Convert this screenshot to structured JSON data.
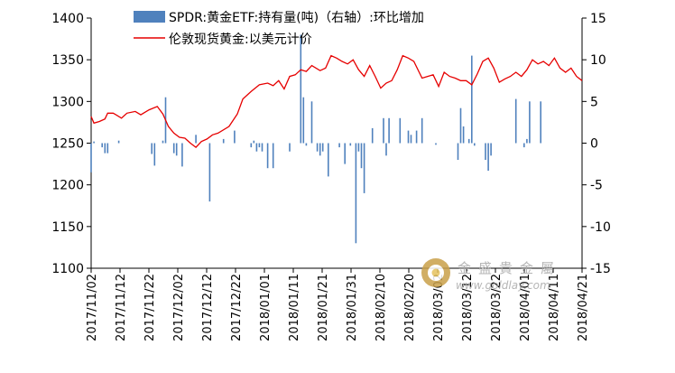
{
  "watermark": {
    "brand": "金盛貴金屬",
    "url": "www.goldlay.com"
  },
  "chart_data": {
    "type": "bar+line",
    "title": "",
    "grid": false,
    "legend": "top-center",
    "axes": {
      "y_left": {
        "min": 1100,
        "max": 1400,
        "ticks": [
          "1100",
          "1150",
          "1200",
          "1250",
          "1300",
          "1350",
          "1400"
        ]
      },
      "y_right": {
        "min": -15,
        "max": 15,
        "ticks": [
          "-15",
          "-10",
          "-5",
          "0",
          "5",
          "10",
          "15"
        ]
      }
    },
    "x_ticks": [
      "2017/11/02",
      "2017/11/12",
      "2017/11/22",
      "2017/12/02",
      "2017/12/12",
      "2017/12/22",
      "2018/01/01",
      "2018/01/11",
      "2018/01/21",
      "2018/01/31",
      "2018/02/10",
      "2018/02/20",
      "2018/03/02",
      "2018/03/12",
      "2018/03/22",
      "2018/04/01",
      "2018/04/11",
      "2018/04/21"
    ],
    "series": [
      {
        "name": "SPDR:黄金ETF:持有量(吨)（右轴）:环比增加",
        "type": "bar",
        "axis": "right",
        "color": "#4f81bd",
        "points": [
          [
            0,
            -3.5
          ],
          [
            1,
            0.2
          ],
          [
            4,
            -0.5
          ],
          [
            5,
            -1.2
          ],
          [
            6,
            -1.2
          ],
          [
            10,
            0.3
          ],
          [
            22,
            -1.3
          ],
          [
            23,
            -2.7
          ],
          [
            26,
            0.3
          ],
          [
            27,
            5.5
          ],
          [
            30,
            -1.2
          ],
          [
            31,
            -1.5
          ],
          [
            33,
            -2.8
          ],
          [
            38,
            1
          ],
          [
            43,
            -7
          ],
          [
            48,
            0.5
          ],
          [
            52,
            1.5
          ],
          [
            58,
            -0.5
          ],
          [
            59,
            0.3
          ],
          [
            60,
            -1
          ],
          [
            61,
            -0.5
          ],
          [
            62,
            -1
          ],
          [
            64,
            -3
          ],
          [
            66,
            -3
          ],
          [
            72,
            -1
          ],
          [
            76,
            13
          ],
          [
            77,
            5.5
          ],
          [
            78,
            -0.3
          ],
          [
            80,
            5
          ],
          [
            82,
            -1
          ],
          [
            83,
            -1.5
          ],
          [
            84,
            -1
          ],
          [
            86,
            -4
          ],
          [
            90,
            -0.5
          ],
          [
            92,
            -2.5
          ],
          [
            94,
            -0.3
          ],
          [
            96,
            -12
          ],
          [
            97,
            -1
          ],
          [
            98,
            -3
          ],
          [
            99,
            -6
          ],
          [
            102,
            1.8
          ],
          [
            106,
            3
          ],
          [
            107,
            -1.5
          ],
          [
            108,
            3
          ],
          [
            112,
            3
          ],
          [
            115,
            1.5
          ],
          [
            116,
            1
          ],
          [
            118,
            1.5
          ],
          [
            120,
            3
          ],
          [
            125,
            -0.2
          ],
          [
            133,
            -2
          ],
          [
            134,
            4.2
          ],
          [
            135,
            2
          ],
          [
            137,
            0.5
          ],
          [
            138,
            10.5
          ],
          [
            139,
            -0.3
          ],
          [
            143,
            -2
          ],
          [
            144,
            -3.3
          ],
          [
            145,
            -1.5
          ],
          [
            154,
            5.3
          ],
          [
            157,
            -0.5
          ],
          [
            158,
            0.5
          ],
          [
            159,
            5
          ],
          [
            163,
            5
          ]
        ]
      },
      {
        "name": "伦敦现货黄金:以美元计价",
        "type": "line",
        "axis": "left",
        "color": "#e60000",
        "points": [
          [
            0,
            1282
          ],
          [
            1,
            1274
          ],
          [
            3,
            1276
          ],
          [
            5,
            1279
          ],
          [
            6,
            1286
          ],
          [
            8,
            1286
          ],
          [
            9,
            1284
          ],
          [
            11,
            1280
          ],
          [
            13,
            1286
          ],
          [
            16,
            1288
          ],
          [
            18,
            1284
          ],
          [
            21,
            1290
          ],
          [
            24,
            1294
          ],
          [
            26,
            1285
          ],
          [
            28,
            1270
          ],
          [
            30,
            1262
          ],
          [
            32,
            1257
          ],
          [
            34,
            1256
          ],
          [
            36,
            1250
          ],
          [
            38,
            1245
          ],
          [
            40,
            1252
          ],
          [
            42,
            1255
          ],
          [
            44,
            1260
          ],
          [
            46,
            1262
          ],
          [
            50,
            1270
          ],
          [
            53,
            1285
          ],
          [
            55,
            1303
          ],
          [
            58,
            1312
          ],
          [
            61,
            1320
          ],
          [
            64,
            1322
          ],
          [
            66,
            1319
          ],
          [
            68,
            1325
          ],
          [
            70,
            1315
          ],
          [
            72,
            1330
          ],
          [
            74,
            1332
          ],
          [
            76,
            1338
          ],
          [
            78,
            1336
          ],
          [
            80,
            1343
          ],
          [
            83,
            1337
          ],
          [
            85,
            1340
          ],
          [
            87,
            1355
          ],
          [
            89,
            1352
          ],
          [
            91,
            1348
          ],
          [
            93,
            1345
          ],
          [
            95,
            1350
          ],
          [
            97,
            1338
          ],
          [
            99,
            1330
          ],
          [
            101,
            1343
          ],
          [
            103,
            1330
          ],
          [
            105,
            1316
          ],
          [
            107,
            1322
          ],
          [
            109,
            1325
          ],
          [
            111,
            1338
          ],
          [
            113,
            1355
          ],
          [
            115,
            1352
          ],
          [
            117,
            1348
          ],
          [
            120,
            1328
          ],
          [
            122,
            1330
          ],
          [
            124,
            1332
          ],
          [
            126,
            1318
          ],
          [
            128,
            1335
          ],
          [
            130,
            1330
          ],
          [
            132,
            1328
          ],
          [
            134,
            1325
          ],
          [
            136,
            1325
          ],
          [
            138,
            1320
          ],
          [
            140,
            1333
          ],
          [
            142,
            1348
          ],
          [
            144,
            1352
          ],
          [
            146,
            1340
          ],
          [
            148,
            1323
          ],
          [
            150,
            1327
          ],
          [
            152,
            1330
          ],
          [
            154,
            1335
          ],
          [
            156,
            1330
          ],
          [
            158,
            1338
          ],
          [
            160,
            1350
          ],
          [
            162,
            1345
          ],
          [
            164,
            1348
          ],
          [
            166,
            1343
          ],
          [
            168,
            1352
          ],
          [
            170,
            1340
          ],
          [
            172,
            1335
          ],
          [
            174,
            1340
          ],
          [
            176,
            1330
          ],
          [
            178,
            1325
          ]
        ]
      }
    ]
  }
}
